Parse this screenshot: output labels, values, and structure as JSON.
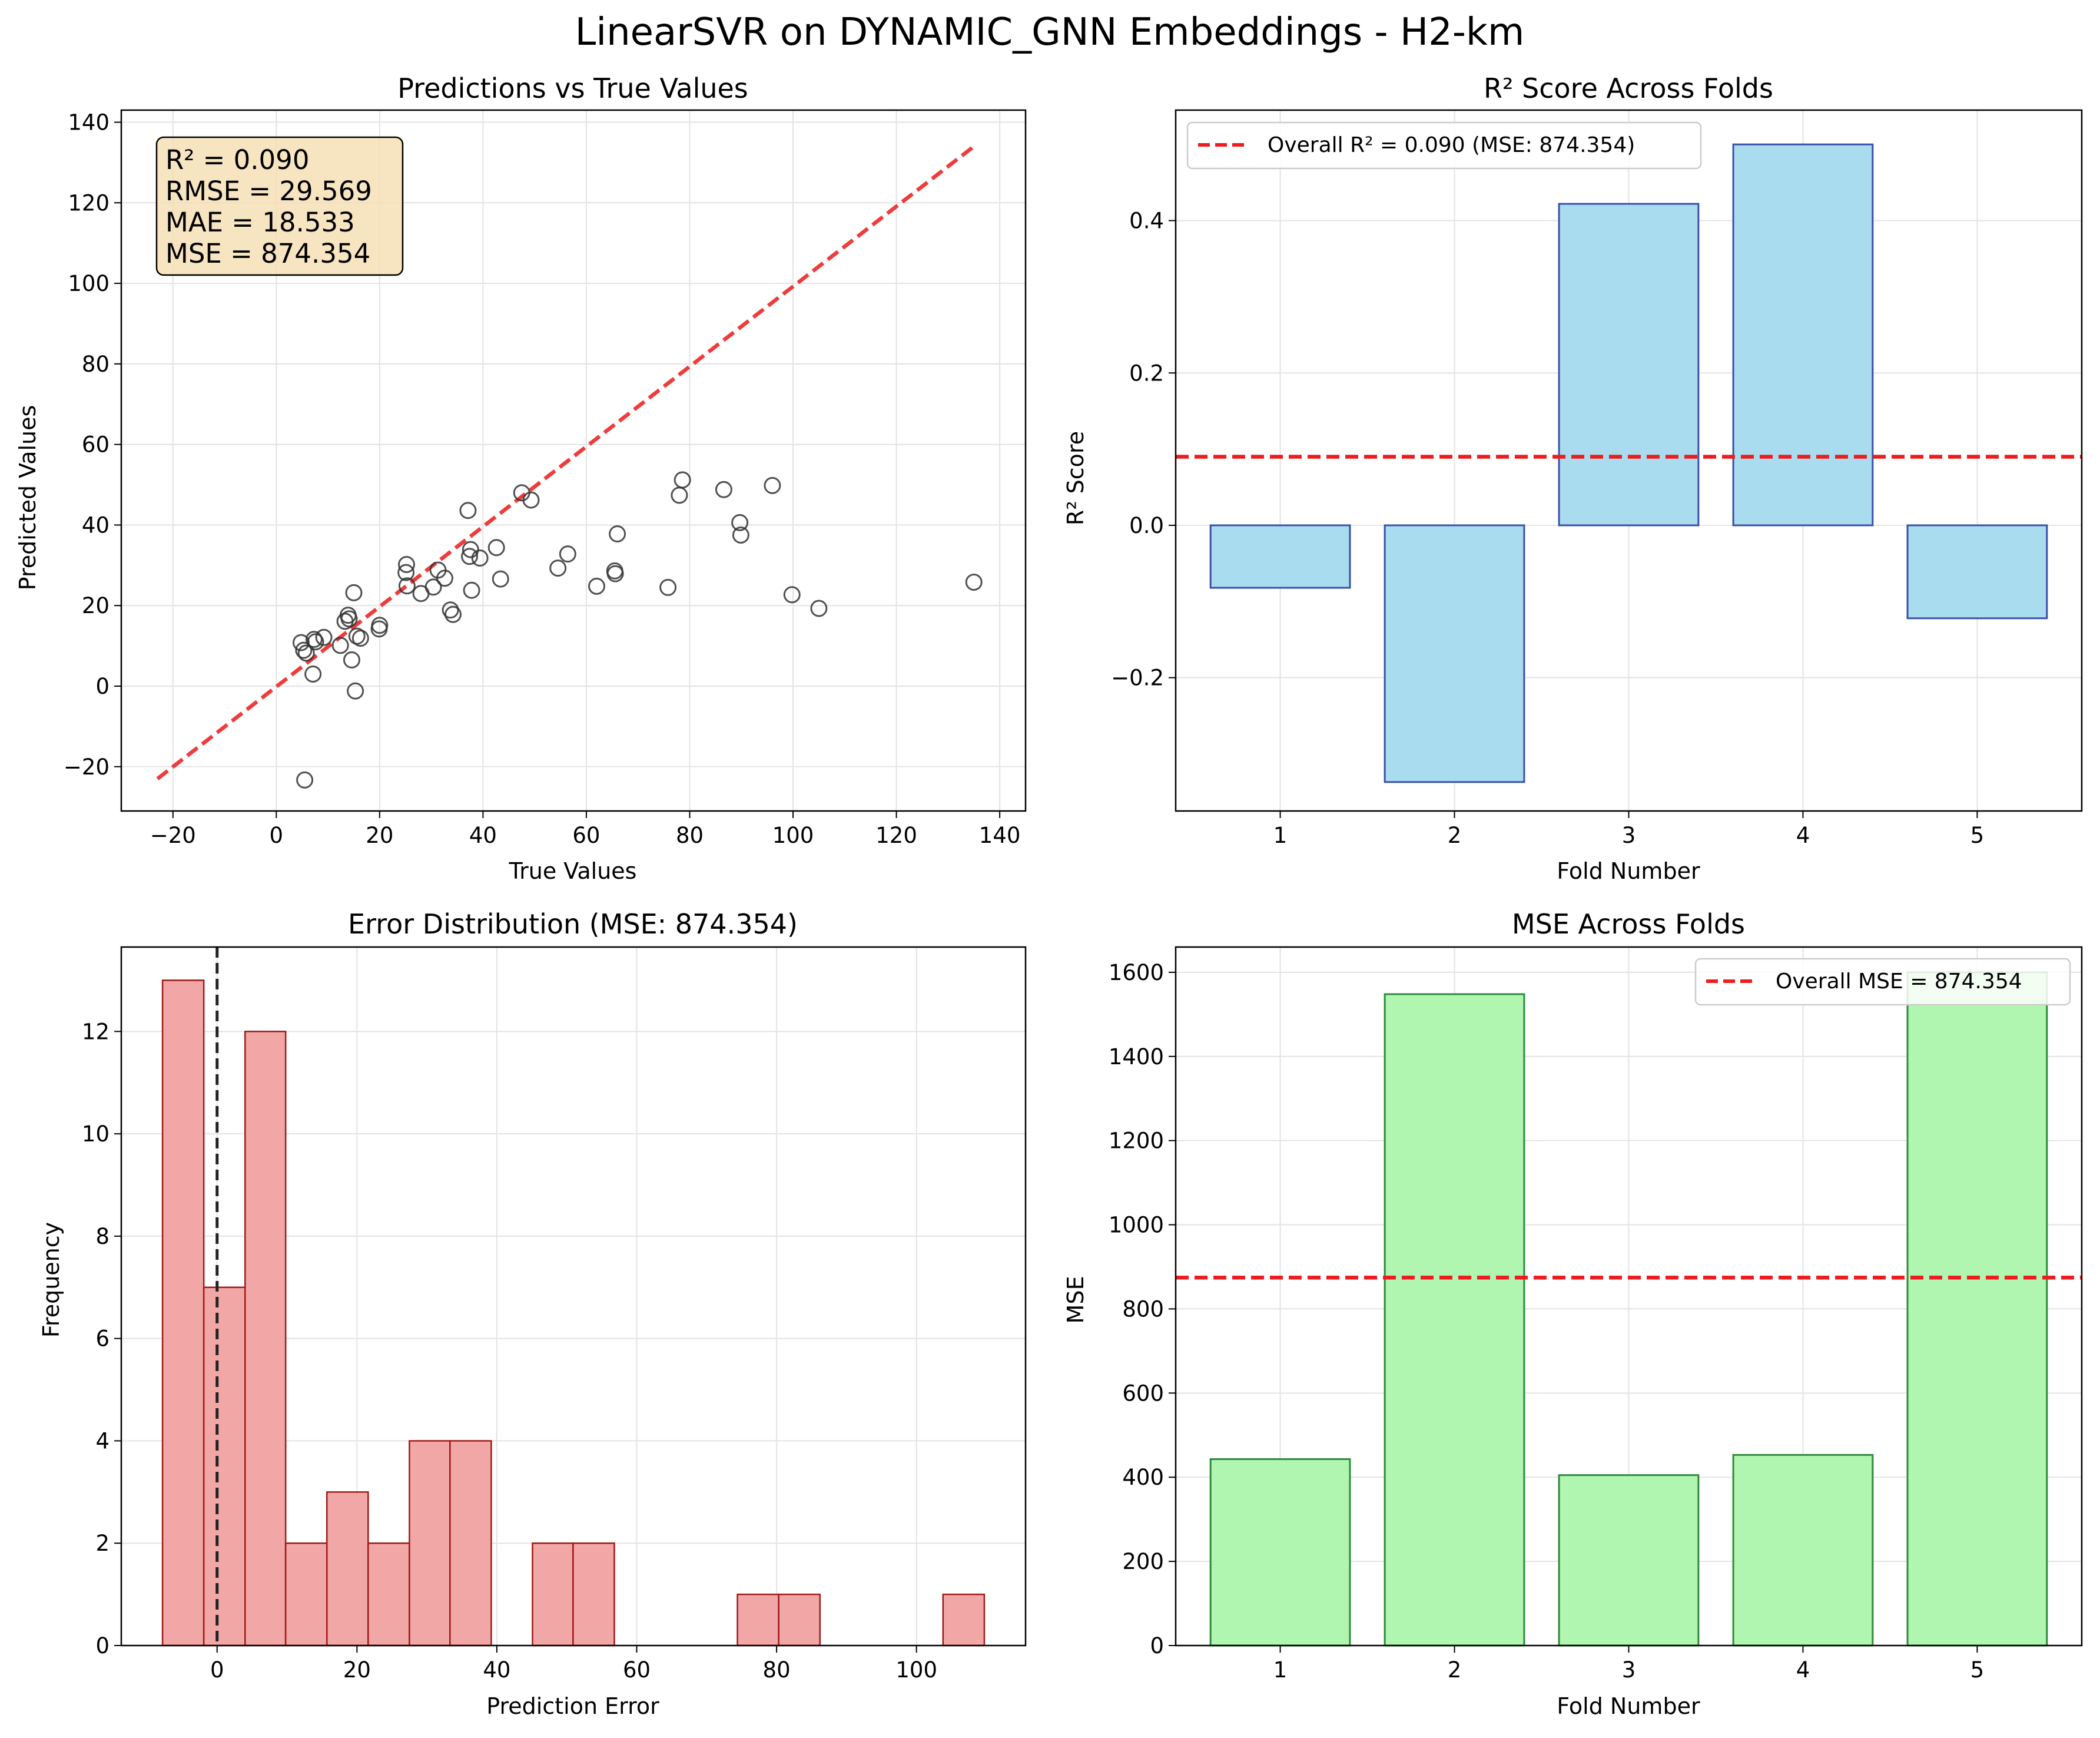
{
  "suptitle": "LinearSVR on DYNAMIC_GNN Embeddings - H2-km",
  "chart_data": [
    {
      "type": "scatter",
      "title": "Predictions vs True Values",
      "xlabel": "True Values",
      "ylabel": "Predicted Values",
      "xlim": [
        -30,
        145
      ],
      "ylim": [
        -31,
        143
      ],
      "xticks": [
        -20,
        0,
        20,
        40,
        60,
        80,
        100,
        120,
        140
      ],
      "yticks": [
        -20,
        0,
        20,
        40,
        60,
        80,
        100,
        120,
        140
      ],
      "grid": true,
      "stats_lines": [
        "R² = 0.090",
        "RMSE = 29.569",
        "MAE = 18.533",
        "MSE = 874.354"
      ],
      "reference_line": {
        "x": [
          -23,
          135
        ],
        "y": [
          -23,
          134
        ],
        "color": "#f03030"
      },
      "marker_color": "#333333",
      "points": [
        {
          "x": 4.8,
          "y": 10.8
        },
        {
          "x": 5.3,
          "y": 8.9
        },
        {
          "x": 5.8,
          "y": 8.2
        },
        {
          "x": 5.5,
          "y": -23.3
        },
        {
          "x": 7.1,
          "y": 3.0
        },
        {
          "x": 7.3,
          "y": 11.6
        },
        {
          "x": 7.6,
          "y": 11.0
        },
        {
          "x": 9.2,
          "y": 12.1
        },
        {
          "x": 12.4,
          "y": 10.1
        },
        {
          "x": 13.3,
          "y": 16.1
        },
        {
          "x": 13.9,
          "y": 17.6
        },
        {
          "x": 14.1,
          "y": 16.7
        },
        {
          "x": 14.6,
          "y": 6.5
        },
        {
          "x": 15.0,
          "y": 23.2
        },
        {
          "x": 15.3,
          "y": -1.2
        },
        {
          "x": 15.6,
          "y": 12.4
        },
        {
          "x": 16.3,
          "y": 11.9
        },
        {
          "x": 19.9,
          "y": 14.2
        },
        {
          "x": 20.0,
          "y": 15.1
        },
        {
          "x": 25.1,
          "y": 28.2
        },
        {
          "x": 25.2,
          "y": 30.2
        },
        {
          "x": 25.3,
          "y": 24.9
        },
        {
          "x": 28.0,
          "y": 23.0
        },
        {
          "x": 30.4,
          "y": 24.6
        },
        {
          "x": 31.3,
          "y": 28.8
        },
        {
          "x": 32.6,
          "y": 26.8
        },
        {
          "x": 33.7,
          "y": 18.9
        },
        {
          "x": 34.2,
          "y": 17.8
        },
        {
          "x": 37.1,
          "y": 43.6
        },
        {
          "x": 37.4,
          "y": 32.2
        },
        {
          "x": 37.6,
          "y": 33.9
        },
        {
          "x": 37.8,
          "y": 23.8
        },
        {
          "x": 39.4,
          "y": 31.8
        },
        {
          "x": 42.6,
          "y": 34.4
        },
        {
          "x": 43.4,
          "y": 26.6
        },
        {
          "x": 47.5,
          "y": 48.0
        },
        {
          "x": 49.3,
          "y": 46.2
        },
        {
          "x": 54.5,
          "y": 29.3
        },
        {
          "x": 56.4,
          "y": 32.8
        },
        {
          "x": 62.0,
          "y": 24.8
        },
        {
          "x": 65.5,
          "y": 28.6
        },
        {
          "x": 65.6,
          "y": 27.9
        },
        {
          "x": 66.0,
          "y": 37.8
        },
        {
          "x": 75.8,
          "y": 24.5
        },
        {
          "x": 78.0,
          "y": 47.4
        },
        {
          "x": 78.6,
          "y": 51.2
        },
        {
          "x": 86.6,
          "y": 48.8
        },
        {
          "x": 89.7,
          "y": 40.6
        },
        {
          "x": 89.9,
          "y": 37.5
        },
        {
          "x": 96.0,
          "y": 49.8
        },
        {
          "x": 99.8,
          "y": 22.7
        },
        {
          "x": 105.0,
          "y": 19.3
        },
        {
          "x": 135.0,
          "y": 25.8
        }
      ]
    },
    {
      "type": "bar",
      "title": "R² Score Across Folds",
      "xlabel": "Fold Number",
      "ylabel": "R² Score",
      "categories": [
        "1",
        "2",
        "3",
        "4",
        "5"
      ],
      "values": [
        -0.082,
        -0.337,
        0.422,
        0.5,
        -0.122
      ],
      "ylim": [
        -0.375,
        0.545
      ],
      "yticks": [
        "−0.2",
        "0.0",
        "0.2",
        "0.4"
      ],
      "ytick_values": [
        -0.2,
        0.0,
        0.2,
        0.4
      ],
      "grid": true,
      "bar_fill": "#a9dcef",
      "bar_edge": "#3a4faa",
      "overall_line": {
        "value": 0.09,
        "color": "#ee1c1c"
      },
      "legend": {
        "label": "Overall R² = 0.090 (MSE: 874.354)",
        "placement": "upper-left"
      }
    },
    {
      "type": "bar",
      "title": "Error Distribution (MSE: 874.354)",
      "xlabel": "Prediction Error",
      "ylabel": "Frequency",
      "bin_edges": [
        -7.8,
        -1.9,
        4.0,
        9.8,
        15.7,
        21.6,
        27.5,
        33.3,
        39.2,
        45.1,
        50.9,
        56.8,
        62.7,
        68.6,
        74.4,
        80.3,
        86.2,
        92.1,
        97.9,
        103.8,
        109.7
      ],
      "values": [
        13,
        7,
        12,
        2,
        3,
        2,
        4,
        4,
        0,
        2,
        2,
        0,
        0,
        0,
        1,
        1,
        0,
        0,
        0,
        1
      ],
      "xlim": [
        -13.7,
        115.6
      ],
      "ylim": [
        0,
        13.65
      ],
      "xticks": [
        0,
        20,
        40,
        60,
        80,
        100
      ],
      "yticks": [
        0,
        2,
        4,
        6,
        8,
        10,
        12
      ],
      "grid": true,
      "bar_fill": "#f2a7a7",
      "bar_edge": "#a01818",
      "zero_line": {
        "value": 0,
        "color": "#222222"
      }
    },
    {
      "type": "bar",
      "title": "MSE Across Folds",
      "xlabel": "Fold Number",
      "ylabel": "MSE",
      "categories": [
        "1",
        "2",
        "3",
        "4",
        "5"
      ],
      "values": [
        443,
        1548,
        405,
        453,
        1600
      ],
      "ylim": [
        0,
        1660
      ],
      "yticks": [
        0,
        200,
        400,
        600,
        800,
        1000,
        1200,
        1400,
        1600
      ],
      "grid": true,
      "bar_fill": "#b0f5b0",
      "bar_edge": "#2e8a3a",
      "overall_line": {
        "value": 874.354,
        "color": "#ee1c1c"
      },
      "legend": {
        "label": "Overall MSE = 874.354",
        "placement": "upper-right"
      }
    }
  ]
}
